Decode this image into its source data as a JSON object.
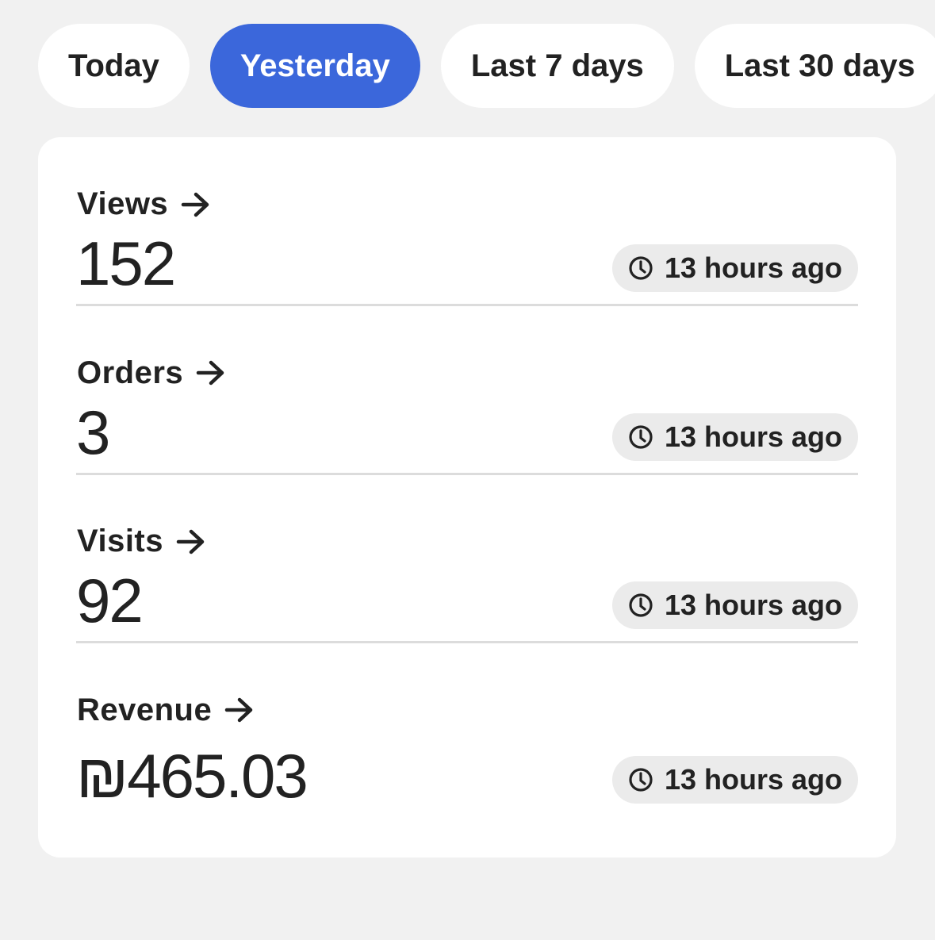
{
  "tabs": [
    {
      "label": "Today",
      "active": false
    },
    {
      "label": "Yesterday",
      "active": true
    },
    {
      "label": "Last 7 days",
      "active": false
    },
    {
      "label": "Last 30 days",
      "active": false
    }
  ],
  "accent_color": "#3b67db",
  "metrics": [
    {
      "label": "Views",
      "value": "152",
      "updated": "13 hours ago"
    },
    {
      "label": "Orders",
      "value": "3",
      "updated": "13 hours ago"
    },
    {
      "label": "Visits",
      "value": "92",
      "updated": "13 hours ago"
    },
    {
      "label": "Revenue",
      "value": "₪465.03",
      "updated": "13 hours ago"
    }
  ]
}
